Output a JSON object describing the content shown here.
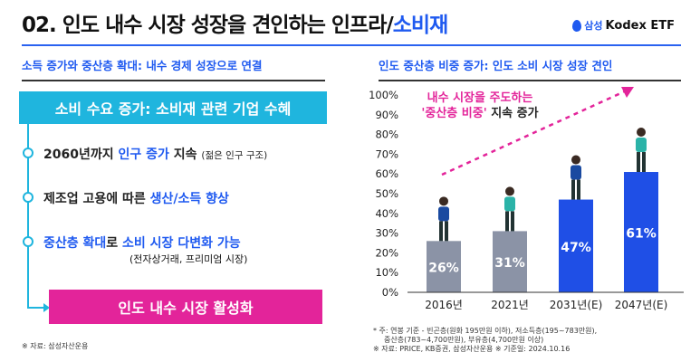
{
  "header": {
    "title_main": "02. 인도 내수 시장 성장을 견인하는 인프라/",
    "title_highlight": "소비재",
    "brand_samsung": "삼성",
    "brand_kodex": "Kodex ETF"
  },
  "left": {
    "subtitle": "소득 증가와 중산층 확대: 내수 경제 성장으로 연결",
    "box_label": "소비 수요 증가: 소비재 관련 기업 수혜",
    "bullets": [
      {
        "pre": "2060년까지 ",
        "hl": "인구 증가",
        "post": " 지속 ",
        "small": "(젊은 인구 구조)"
      },
      {
        "pre": "제조업 고용에 따른 ",
        "hl": "생산/소득 향상",
        "post": "",
        "small": ""
      },
      {
        "pre": "",
        "hl": "중산층 확대",
        "post": "로 ",
        "hl2": "소비 시장 다변화 가능",
        "sub": "(전자상거래, 프리미엄 시장)"
      }
    ],
    "result_label": "인도 내수 시장 활성화",
    "source": "※ 자료: 삼성자산운용"
  },
  "right": {
    "subtitle": "인도 중산층 비중 증가: 인도 소비 시장 성장 견인",
    "annotation_line1": "내수 시장을 주도하는",
    "annotation_hl": "'중산층 비중'",
    "annotation_rest": " 지속 증가",
    "note1": "* 주: 연봉 기준 - 빈곤층(원화 195만원 이하), 저소득층(195~783만원),",
    "note2": "중산층(783~4,700만원), 부유층(4,700만원 이상)",
    "note3": "※ 자료: PRICE, KB증권, 삼성자산운용 ※ 기준일: 2024.10.16"
  },
  "chart_data": {
    "type": "bar",
    "categories": [
      "2016년",
      "2021년",
      "2031년(E)",
      "2047년(E)"
    ],
    "values": [
      26,
      31,
      47,
      61
    ],
    "labels": [
      "26%",
      "31%",
      "47%",
      "61%"
    ],
    "colors": [
      "#8b93a6",
      "#8b93a6",
      "#1f4fe6",
      "#1f4fe6"
    ],
    "ylim": [
      0,
      100
    ],
    "yticks": [
      "0%",
      "10%",
      "20%",
      "30%",
      "40%",
      "50%",
      "60%",
      "70%",
      "80%",
      "90%",
      "100%"
    ],
    "title": "인도 중산층 비중 증가: 인도 소비 시장 성장 견인"
  }
}
